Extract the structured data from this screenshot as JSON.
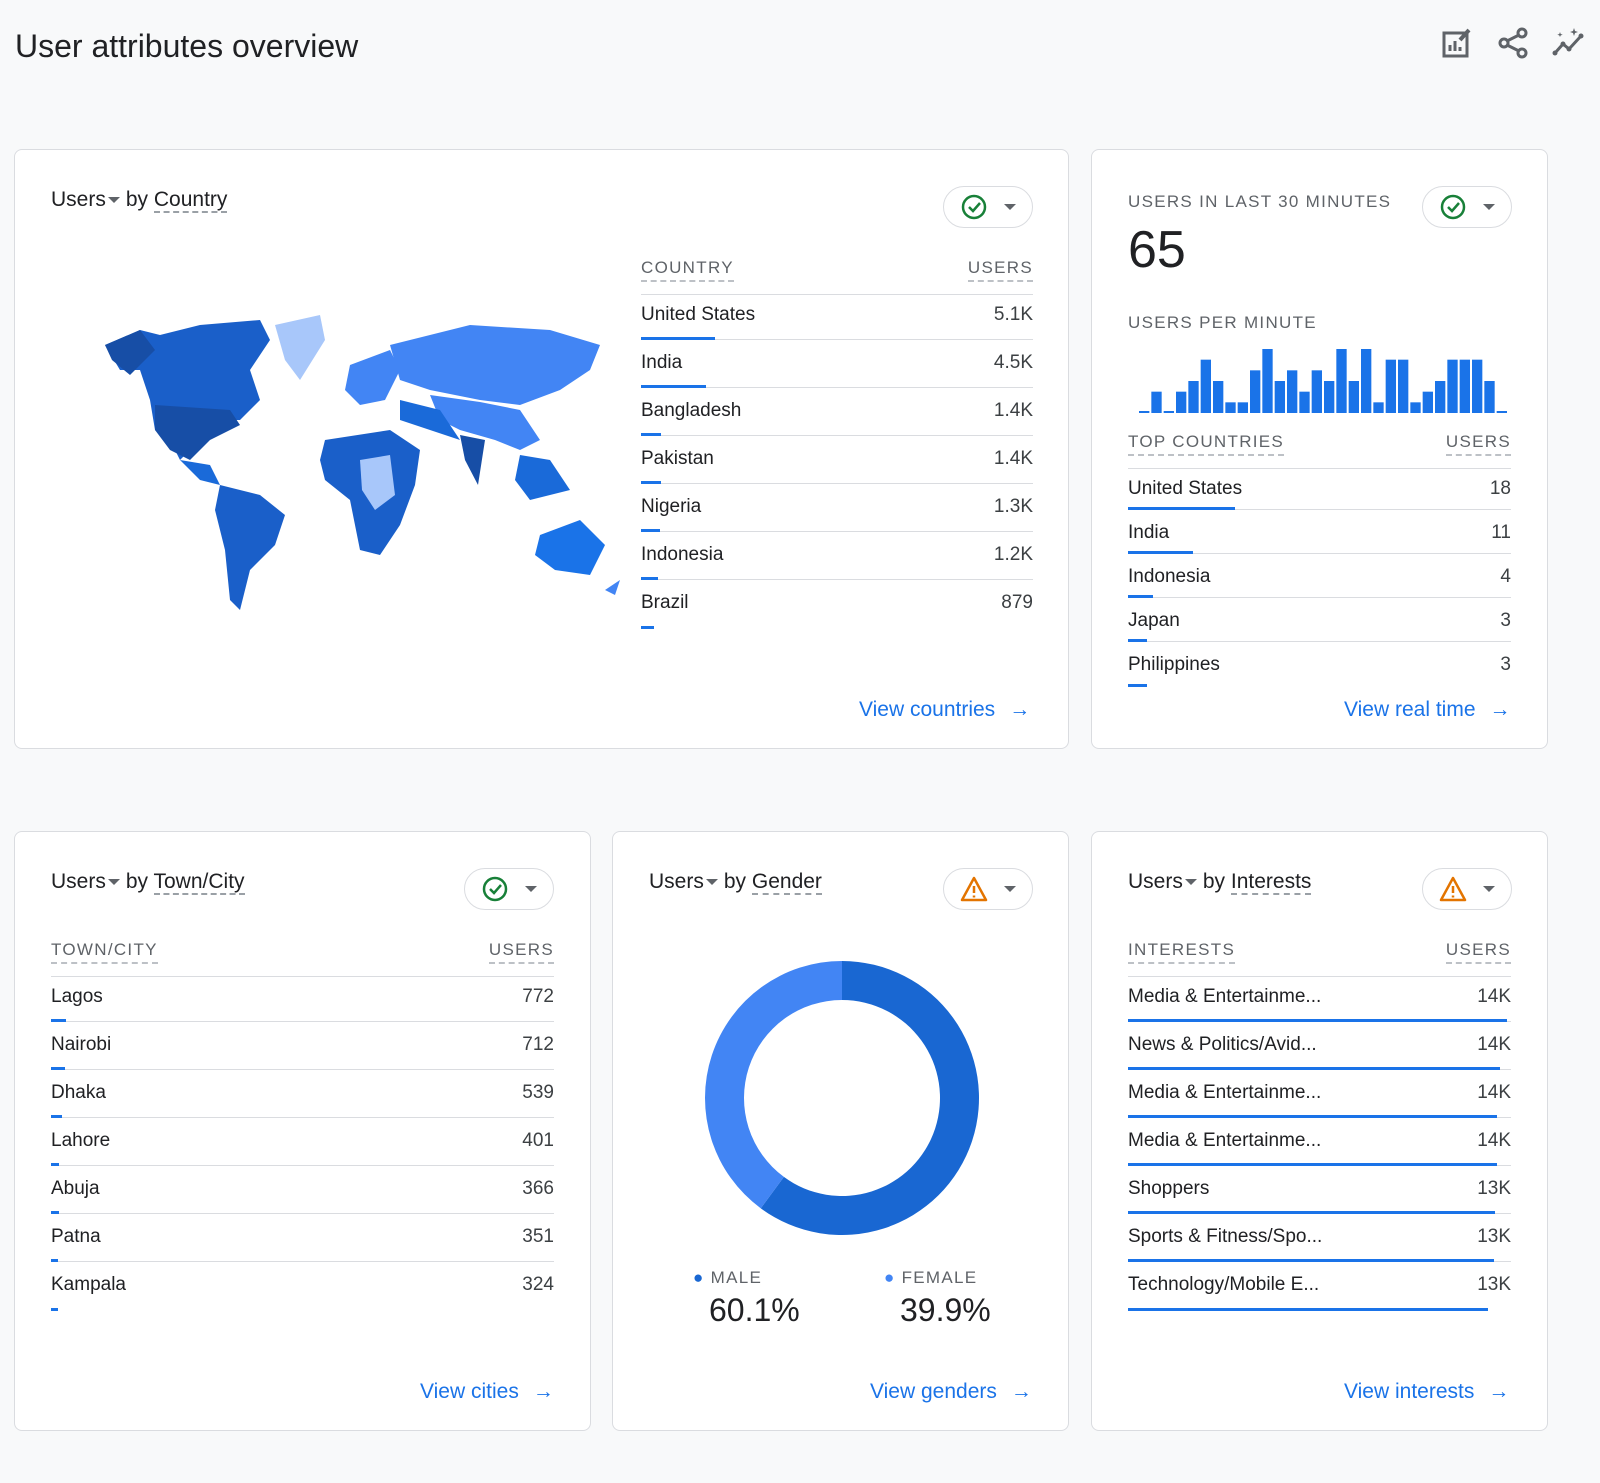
{
  "page_title": "User attributes overview",
  "toolbar": {
    "icons": [
      "edit-report-icon",
      "share-icon",
      "insights-icon"
    ]
  },
  "colors": {
    "accent": "#1a73e8",
    "male": "#1967d2",
    "female": "#4285f4",
    "ok": "#188038",
    "warn": "#e37400"
  },
  "country_card": {
    "metric": "Users",
    "by": "by",
    "dimension": "Country",
    "status": "ok",
    "col1": "COUNTRY",
    "col2": "USERS",
    "rows": [
      {
        "label": "United States",
        "value": "5.1K",
        "bar": 0.19
      },
      {
        "label": "India",
        "value": "4.5K",
        "bar": 0.165
      },
      {
        "label": "Bangladesh",
        "value": "1.4K",
        "bar": 0.052
      },
      {
        "label": "Pakistan",
        "value": "1.4K",
        "bar": 0.05
      },
      {
        "label": "Nigeria",
        "value": "1.3K",
        "bar": 0.048
      },
      {
        "label": "Indonesia",
        "value": "1.2K",
        "bar": 0.044
      },
      {
        "label": "Brazil",
        "value": "879",
        "bar": 0.032
      }
    ],
    "link": "View countries"
  },
  "realtime_card": {
    "title": "USERS IN LAST 30 MINUTES",
    "value": "65",
    "status": "ok",
    "per_minute_label": "USERS PER MINUTE",
    "per_minute": [
      0,
      2,
      0,
      2,
      3,
      5,
      3,
      1,
      1,
      4,
      6,
      3,
      4,
      2,
      4,
      3,
      6,
      3,
      6,
      1,
      5,
      5,
      1,
      2,
      3,
      5,
      5,
      5,
      3,
      0
    ],
    "col1": "TOP COUNTRIES",
    "col2": "USERS",
    "rows": [
      {
        "label": "United States",
        "value": "18",
        "bar": 0.28
      },
      {
        "label": "India",
        "value": "11",
        "bar": 0.17
      },
      {
        "label": "Indonesia",
        "value": "4",
        "bar": 0.065
      },
      {
        "label": "Japan",
        "value": "3",
        "bar": 0.05
      },
      {
        "label": "Philippines",
        "value": "3",
        "bar": 0.05
      }
    ],
    "link": "View real time"
  },
  "city_card": {
    "metric": "Users",
    "by": "by",
    "dimension": "Town/City",
    "status": "ok",
    "col1": "TOWN/CITY",
    "col2": "USERS",
    "rows": [
      {
        "label": "Lagos",
        "value": "772",
        "bar": 0.03
      },
      {
        "label": "Nairobi",
        "value": "712",
        "bar": 0.028
      },
      {
        "label": "Dhaka",
        "value": "539",
        "bar": 0.021
      },
      {
        "label": "Lahore",
        "value": "401",
        "bar": 0.016
      },
      {
        "label": "Abuja",
        "value": "366",
        "bar": 0.015
      },
      {
        "label": "Patna",
        "value": "351",
        "bar": 0.014
      },
      {
        "label": "Kampala",
        "value": "324",
        "bar": 0.013
      }
    ],
    "link": "View cities"
  },
  "gender_card": {
    "metric": "Users",
    "by": "by",
    "dimension": "Gender",
    "status": "warning",
    "segments": [
      {
        "label": "MALE",
        "value": "60.1%",
        "pct": 60.1
      },
      {
        "label": "FEMALE",
        "value": "39.9%",
        "pct": 39.9
      }
    ],
    "link": "View genders"
  },
  "interests_card": {
    "metric": "Users",
    "by": "by",
    "dimension": "Interests",
    "status": "warning",
    "col1": "INTERESTS",
    "col2": "USERS",
    "rows": [
      {
        "label": "Media & Entertainme...",
        "value": "14K",
        "bar": 0.99
      },
      {
        "label": "News & Politics/Avid...",
        "value": "14K",
        "bar": 0.97
      },
      {
        "label": "Media & Entertainme...",
        "value": "14K",
        "bar": 0.963
      },
      {
        "label": "Media & Entertainme...",
        "value": "14K",
        "bar": 0.963
      },
      {
        "label": "Shoppers",
        "value": "13K",
        "bar": 0.958
      },
      {
        "label": "Sports & Fitness/Spo...",
        "value": "13K",
        "bar": 0.955
      },
      {
        "label": "Technology/Mobile E...",
        "value": "13K",
        "bar": 0.94
      }
    ],
    "link": "View interests"
  }
}
